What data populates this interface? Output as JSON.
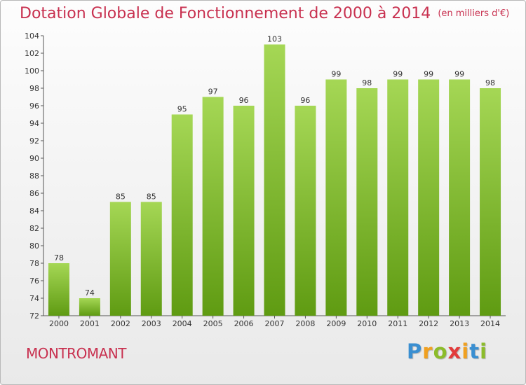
{
  "header": {
    "title": "Dotation Globale de Fonctionnement de 2000 à 2014",
    "unit": "(en milliers d'€)"
  },
  "footer": {
    "commune": "MONTROMANT",
    "logo_letters": [
      "P",
      "r",
      "o",
      "x",
      "i",
      "t",
      "i"
    ]
  },
  "colors": {
    "accent": "#c8304f",
    "bar_top": "#a5d755",
    "bar_bottom": "#5f9b12",
    "logo": [
      "#3a8fd1",
      "#f0a020",
      "#8cbc2a",
      "#e23b3b",
      "#f0a020",
      "#3a8fd1",
      "#8cbc2a"
    ]
  },
  "chart_data": {
    "type": "bar",
    "title": "Dotation Globale de Fonctionnement de 2000 à 2014",
    "subtitle": "(en milliers d'€)",
    "xlabel": "",
    "ylabel": "",
    "categories": [
      "2000",
      "2001",
      "2002",
      "2003",
      "2004",
      "2005",
      "2006",
      "2007",
      "2008",
      "2009",
      "2010",
      "2011",
      "2012",
      "2013",
      "2014"
    ],
    "values": [
      78,
      74,
      85,
      85,
      95,
      97,
      96,
      103,
      96,
      99,
      98,
      99,
      99,
      99,
      98
    ],
    "ylim": [
      72,
      104
    ],
    "yticks": [
      72,
      74,
      76,
      78,
      80,
      82,
      84,
      86,
      88,
      90,
      92,
      94,
      96,
      98,
      100,
      102,
      104
    ],
    "grid": false,
    "legend": "none",
    "data_labels": true
  }
}
